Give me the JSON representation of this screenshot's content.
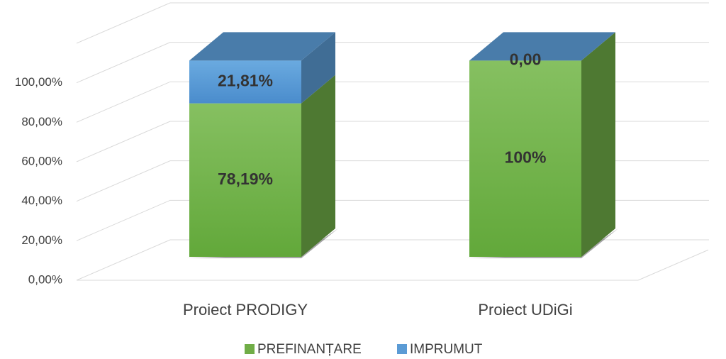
{
  "chart_data": {
    "type": "bar3d_stacked",
    "categories": [
      "Proiect PRODIGY",
      "Proiect UDiGi"
    ],
    "series": [
      {
        "name": "PREFINANȚARE",
        "color": "#70ad47",
        "values": [
          78.19,
          100
        ],
        "value_labels": [
          "78,19%",
          "100%"
        ]
      },
      {
        "name": "IMPRUMUT",
        "color": "#5b9bd5",
        "values": [
          21.81,
          0
        ],
        "value_labels": [
          "21,81%",
          "0,00"
        ]
      }
    ],
    "ylim": [
      0,
      120
    ],
    "yticks": [
      {
        "value": 0,
        "label": "0,00%"
      },
      {
        "value": 20,
        "label": "20,00%"
      },
      {
        "value": 40,
        "label": "40,00%"
      },
      {
        "value": 60,
        "label": "60,00%"
      },
      {
        "value": 80,
        "label": "80,00%"
      },
      {
        "value": 100,
        "label": "100,00%"
      }
    ],
    "grid": true,
    "legend": "bottom"
  }
}
